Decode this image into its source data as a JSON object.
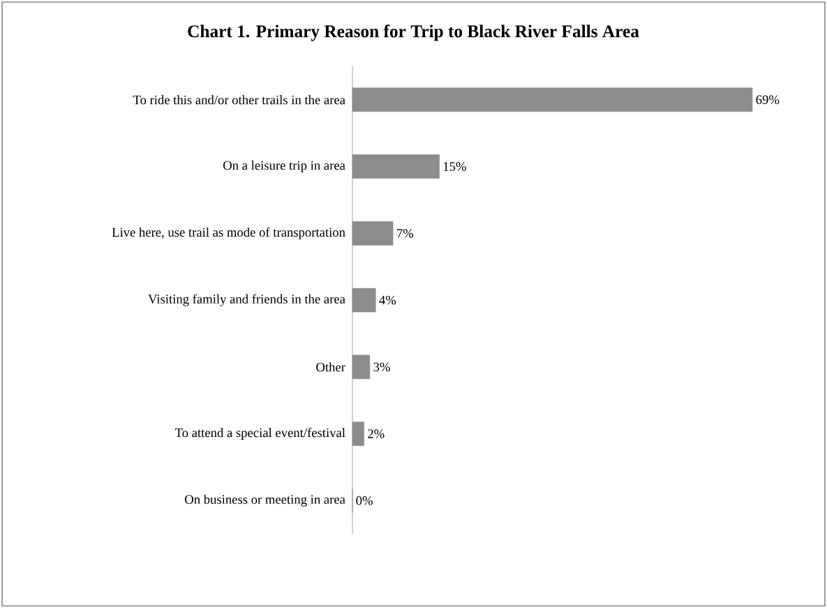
{
  "chart_data": {
    "type": "bar",
    "orientation": "horizontal",
    "title": "Chart 1.  Primary Reason for Trip to Black River Falls Area",
    "categories": [
      "To ride this and/or other trails in the area",
      "On a leisure trip in area",
      "Live here, use trail as mode of transportation",
      "Visiting family and friends in the area",
      "Other",
      "To attend a special event/festival",
      "On business or meeting in area"
    ],
    "values": [
      69,
      15,
      7,
      4,
      3,
      2,
      0
    ],
    "value_labels": [
      "69%",
      "15%",
      "7%",
      "4%",
      "3%",
      "2%",
      "0%"
    ],
    "color": "#8c8c8c"
  }
}
